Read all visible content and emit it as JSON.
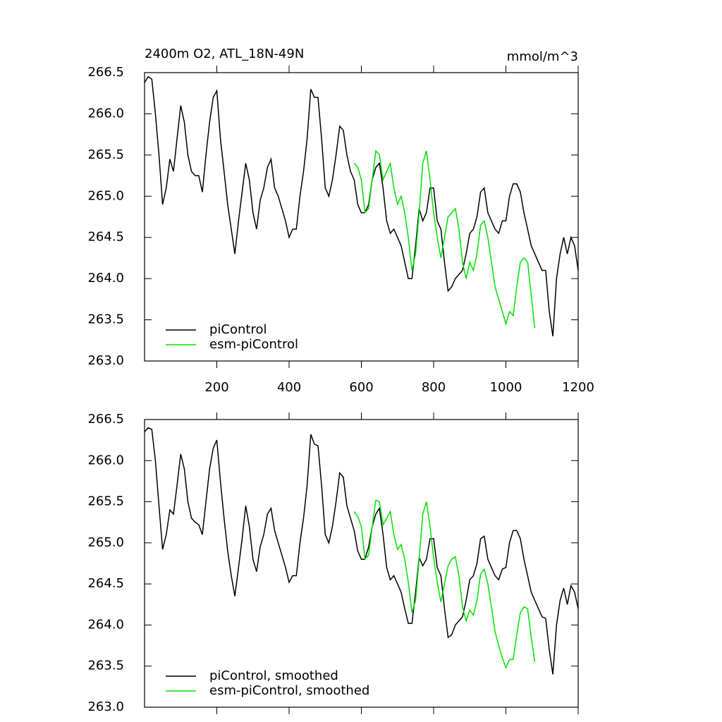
{
  "chart_data": [
    {
      "type": "line",
      "title": "2400m O2, ATL_18N-49N",
      "units": "mmol/m^3",
      "xlim": [
        0,
        1200
      ],
      "xticks": [
        200,
        400,
        600,
        800,
        1000,
        1200
      ],
      "xtick_labels": true,
      "ylim": [
        263,
        266.5
      ],
      "yticks": [
        {
          "value": 263,
          "label": "263.0"
        },
        263.5,
        {
          "value": 264,
          "label": "264.0"
        },
        264.5,
        {
          "value": 265,
          "label": "265.0"
        },
        265.5,
        {
          "value": 266,
          "label": "266.0"
        },
        266.5
      ],
      "legend": "lower left",
      "series": [
        {
          "name": "piControl",
          "color": "#000000",
          "x": [
            0,
            10,
            20,
            30,
            40,
            50,
            60,
            70,
            80,
            90,
            100,
            110,
            120,
            130,
            140,
            150,
            160,
            170,
            180,
            190,
            200,
            210,
            220,
            230,
            240,
            250,
            260,
            270,
            280,
            290,
            300,
            310,
            320,
            330,
            340,
            350,
            360,
            370,
            380,
            390,
            400,
            410,
            420,
            430,
            440,
            450,
            460,
            470,
            480,
            490,
            500,
            510,
            520,
            530,
            540,
            550,
            560,
            570,
            580,
            590,
            600,
            610,
            620,
            630,
            640,
            650,
            660,
            670,
            680,
            690,
            700,
            710,
            720,
            730,
            740,
            750,
            760,
            770,
            780,
            790,
            800,
            810,
            820,
            830,
            840,
            850,
            860,
            870,
            880,
            890,
            900,
            910,
            920,
            930,
            940,
            950,
            960,
            970,
            980,
            990,
            1000,
            1010,
            1020,
            1030,
            1040,
            1050,
            1060,
            1070,
            1080,
            1090,
            1100,
            1110,
            1120,
            1130,
            1140,
            1150,
            1160,
            1170,
            1180,
            1190,
            1200
          ],
          "values": [
            266.38,
            266.45,
            266.42,
            266.0,
            265.5,
            264.9,
            265.1,
            265.45,
            265.3,
            265.7,
            266.1,
            265.9,
            265.5,
            265.3,
            265.25,
            265.25,
            265.05,
            265.5,
            265.9,
            266.2,
            266.28,
            265.7,
            265.3,
            264.9,
            264.6,
            264.3,
            264.7,
            265.05,
            265.4,
            265.2,
            264.8,
            264.6,
            264.95,
            265.1,
            265.35,
            265.45,
            265.1,
            265.0,
            264.85,
            264.7,
            264.5,
            264.6,
            264.6,
            265.0,
            265.3,
            265.7,
            266.3,
            266.2,
            266.2,
            265.7,
            265.1,
            265.0,
            265.2,
            265.5,
            265.85,
            265.8,
            265.5,
            265.3,
            265.2,
            264.9,
            264.8,
            264.8,
            264.9,
            265.2,
            265.35,
            265.4,
            265.1,
            264.7,
            264.55,
            264.6,
            264.5,
            264.4,
            264.2,
            264.0,
            264.0,
            264.4,
            264.85,
            264.7,
            264.8,
            265.1,
            265.1,
            264.7,
            264.6,
            264.2,
            263.85,
            263.9,
            264.0,
            264.05,
            264.1,
            264.3,
            264.55,
            264.6,
            264.75,
            265.05,
            265.1,
            264.8,
            264.7,
            264.6,
            264.55,
            264.7,
            264.7,
            265.0,
            265.15,
            265.15,
            265.05,
            264.8,
            264.6,
            264.4,
            264.3,
            264.2,
            264.1,
            264.1,
            263.6,
            263.3,
            264.0,
            264.3,
            264.5,
            264.3,
            264.5,
            264.4,
            264.1
          ]
        },
        {
          "name": "esm-piControl",
          "color": "#00e000",
          "x": [
            580,
            590,
            600,
            610,
            620,
            630,
            640,
            650,
            660,
            670,
            680,
            690,
            700,
            710,
            720,
            730,
            740,
            750,
            760,
            770,
            780,
            790,
            800,
            810,
            820,
            830,
            840,
            850,
            860,
            870,
            880,
            890,
            900,
            910,
            920,
            930,
            940,
            950,
            960,
            970,
            980,
            990,
            1000,
            1010,
            1020,
            1030,
            1040,
            1050,
            1060,
            1070,
            1080
          ],
          "values": [
            265.4,
            265.35,
            265.2,
            264.8,
            264.85,
            265.2,
            265.55,
            265.5,
            265.2,
            265.3,
            265.4,
            265.1,
            264.9,
            265.0,
            264.8,
            264.5,
            264.1,
            264.3,
            264.8,
            265.4,
            265.55,
            265.2,
            264.8,
            264.5,
            264.25,
            264.5,
            264.75,
            264.8,
            264.85,
            264.6,
            264.2,
            264.0,
            264.2,
            264.1,
            264.3,
            264.65,
            264.7,
            264.5,
            264.2,
            263.9,
            263.75,
            263.6,
            263.45,
            263.6,
            263.55,
            263.9,
            264.2,
            264.25,
            264.2,
            263.8,
            263.4
          ]
        }
      ]
    },
    {
      "type": "line",
      "xlim": [
        0,
        1200
      ],
      "xticks": [
        200,
        400,
        600,
        800,
        1000,
        1200
      ],
      "xtick_labels": false,
      "ylim": [
        263,
        266.5
      ],
      "yticks": [
        {
          "value": 263,
          "label": "263.0"
        },
        263.5,
        {
          "value": 264,
          "label": "264.0"
        },
        264.5,
        {
          "value": 265,
          "label": "265.0"
        },
        265.5,
        {
          "value": 266,
          "label": "266.0"
        },
        266.5
      ],
      "legend": "lower left",
      "series": [
        {
          "name": "piControl, smoothed",
          "color": "#000000",
          "x": [
            0,
            10,
            20,
            30,
            40,
            50,
            60,
            70,
            80,
            90,
            100,
            110,
            120,
            130,
            140,
            150,
            160,
            170,
            180,
            190,
            200,
            210,
            220,
            230,
            240,
            250,
            260,
            270,
            280,
            290,
            300,
            310,
            320,
            330,
            340,
            350,
            360,
            370,
            380,
            390,
            400,
            410,
            420,
            430,
            440,
            450,
            460,
            470,
            480,
            490,
            500,
            510,
            520,
            530,
            540,
            550,
            560,
            570,
            580,
            590,
            600,
            610,
            620,
            630,
            640,
            650,
            660,
            670,
            680,
            690,
            700,
            710,
            720,
            730,
            740,
            750,
            760,
            770,
            780,
            790,
            800,
            810,
            820,
            830,
            840,
            850,
            860,
            870,
            880,
            890,
            900,
            910,
            920,
            930,
            940,
            950,
            960,
            970,
            980,
            990,
            1000,
            1010,
            1020,
            1030,
            1040,
            1050,
            1060,
            1070,
            1080,
            1090,
            1100,
            1110,
            1120,
            1130,
            1140,
            1150,
            1160,
            1170,
            1180,
            1190,
            1200
          ],
          "values": [
            266.35,
            266.4,
            266.38,
            266.0,
            265.45,
            264.92,
            265.1,
            265.4,
            265.35,
            265.7,
            266.08,
            265.9,
            265.5,
            265.3,
            265.25,
            265.22,
            265.1,
            265.5,
            265.9,
            266.15,
            266.25,
            265.75,
            265.3,
            264.9,
            264.6,
            264.35,
            264.7,
            265.05,
            265.45,
            265.2,
            264.8,
            264.65,
            264.95,
            265.1,
            265.35,
            265.42,
            265.15,
            265.0,
            264.85,
            264.7,
            264.52,
            264.6,
            264.6,
            265.0,
            265.3,
            265.7,
            266.32,
            266.2,
            266.18,
            265.7,
            265.1,
            265.0,
            265.2,
            265.5,
            265.85,
            265.8,
            265.45,
            265.3,
            265.15,
            264.9,
            264.8,
            264.8,
            264.95,
            265.2,
            265.35,
            265.42,
            265.1,
            264.7,
            264.55,
            264.6,
            264.5,
            264.4,
            264.2,
            264.02,
            264.02,
            264.4,
            264.82,
            264.72,
            264.8,
            265.05,
            265.05,
            264.7,
            264.6,
            264.2,
            263.85,
            263.88,
            264.0,
            264.05,
            264.1,
            264.3,
            264.55,
            264.6,
            264.75,
            265.05,
            265.08,
            264.8,
            264.7,
            264.6,
            264.55,
            264.68,
            264.7,
            265.0,
            265.15,
            265.15,
            265.05,
            264.8,
            264.6,
            264.4,
            264.3,
            264.2,
            264.1,
            264.08,
            263.7,
            263.4,
            264.0,
            264.3,
            264.45,
            264.25,
            264.48,
            264.4,
            264.2
          ]
        },
        {
          "name": "esm-piControl, smoothed",
          "color": "#00e000",
          "x": [
            580,
            590,
            600,
            610,
            620,
            630,
            640,
            650,
            660,
            670,
            680,
            690,
            700,
            710,
            720,
            730,
            740,
            750,
            760,
            770,
            780,
            790,
            800,
            810,
            820,
            830,
            840,
            850,
            860,
            870,
            880,
            890,
            900,
            910,
            920,
            930,
            940,
            950,
            960,
            970,
            980,
            990,
            1000,
            1010,
            1020,
            1030,
            1040,
            1050,
            1060,
            1070,
            1080
          ],
          "values": [
            265.38,
            265.32,
            265.2,
            264.8,
            264.85,
            265.2,
            265.52,
            265.5,
            265.22,
            265.3,
            265.38,
            265.1,
            264.92,
            264.98,
            264.8,
            264.52,
            264.15,
            264.3,
            264.8,
            265.35,
            265.5,
            265.2,
            264.82,
            264.52,
            264.28,
            264.5,
            264.72,
            264.8,
            264.83,
            264.6,
            264.22,
            264.05,
            264.18,
            264.12,
            264.3,
            264.62,
            264.68,
            264.5,
            264.22,
            263.92,
            263.75,
            263.6,
            263.48,
            263.58,
            263.58,
            263.88,
            264.15,
            264.22,
            264.2,
            263.85,
            263.55
          ]
        }
      ]
    }
  ]
}
